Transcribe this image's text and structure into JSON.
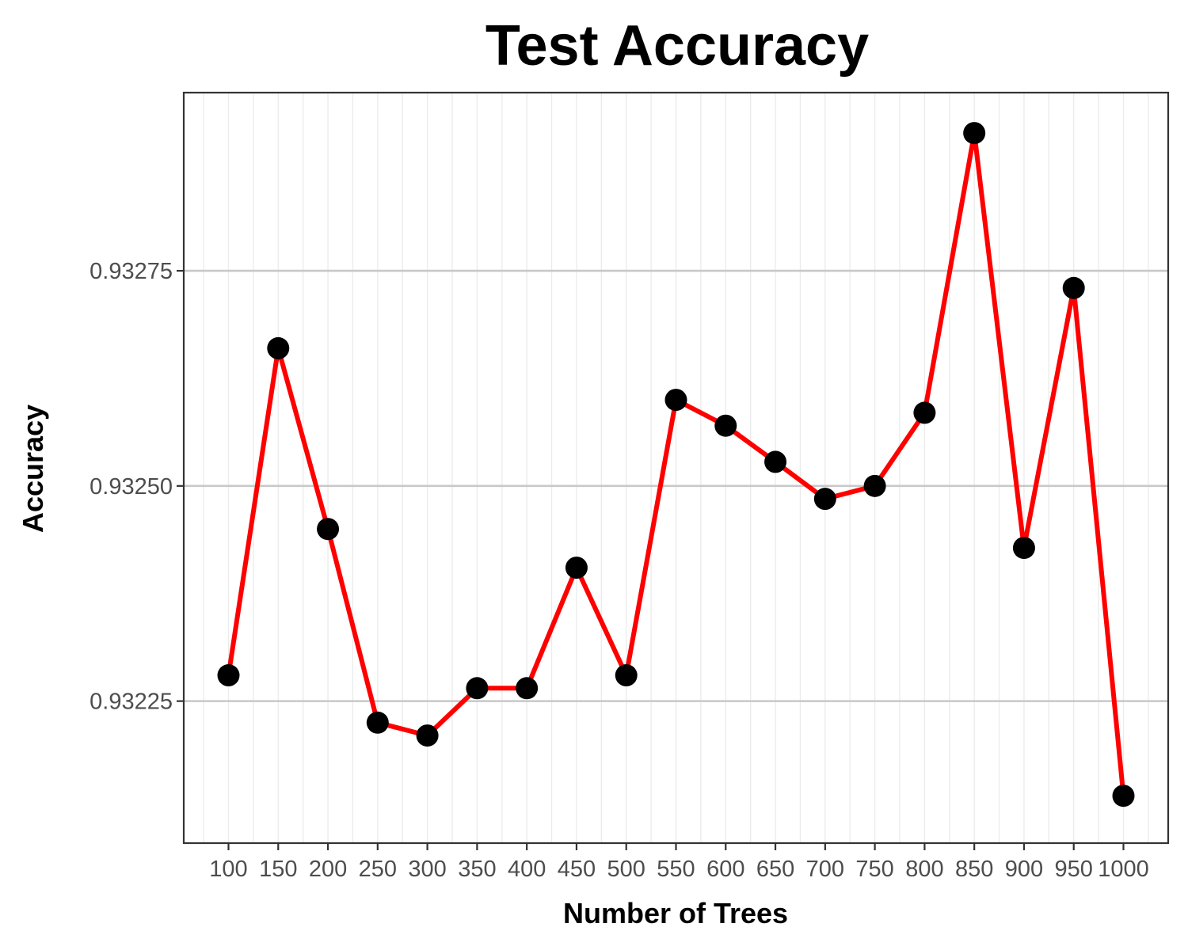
{
  "chart_data": {
    "type": "line",
    "title": "Test Accuracy",
    "xlabel": "Number of Trees",
    "ylabel": "Accuracy",
    "x": [
      100,
      150,
      200,
      250,
      300,
      350,
      400,
      450,
      500,
      550,
      600,
      650,
      700,
      750,
      800,
      850,
      900,
      950,
      1000
    ],
    "x_tick_labels": [
      "100",
      "150",
      "200",
      "250",
      "300",
      "350",
      "400",
      "450",
      "500",
      "550",
      "600",
      "650",
      "700",
      "750",
      "800",
      "850",
      "900",
      "950",
      "1000"
    ],
    "y_ticks": [
      0.93225,
      0.9325,
      0.93275
    ],
    "y_tick_labels": [
      "0.93225",
      "0.93250",
      "0.93275"
    ],
    "xlim": [
      55,
      1045
    ],
    "ylim": [
      0.932085,
      0.932957
    ],
    "grid": true,
    "legend": "none",
    "series": [
      {
        "values": [
          0.93228,
          0.93266,
          0.93245,
          0.932225,
          0.93221,
          0.932265,
          0.932265,
          0.932405,
          0.93228,
          0.9326,
          0.93257,
          0.932528,
          0.932485,
          0.9325,
          0.932585,
          0.93291,
          0.932428,
          0.93273,
          0.93214
        ],
        "line_color": "#ff0000",
        "marker_color": "#000000"
      }
    ]
  }
}
